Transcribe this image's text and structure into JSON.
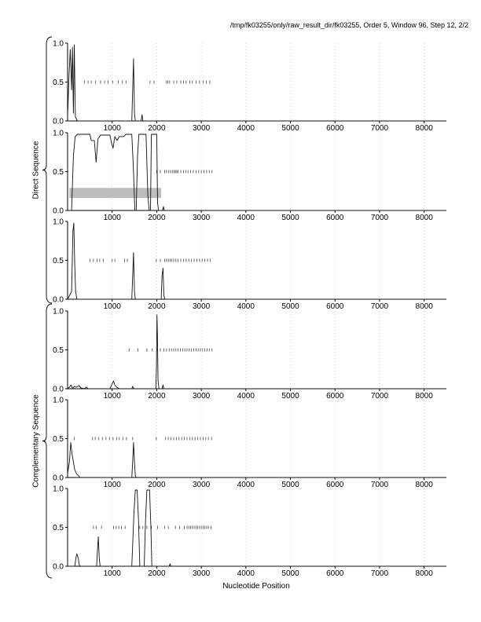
{
  "header": "/tmp/fk03255/only/raw_result_dir/fk03255, Order 5, Window 96, Step 12, 2/2",
  "x_title": "Nucleotide Position",
  "strand_labels": [
    "Direct Sequence",
    "Complementary Sequence"
  ],
  "chart_data": {
    "type": "line",
    "xlabel": "Nucleotide Position",
    "xlim": [
      0,
      8500
    ],
    "ylim": [
      0,
      1.0
    ],
    "x_ticks": [
      1000,
      2000,
      3000,
      4000,
      5000,
      6000,
      7000,
      8000
    ],
    "y_ticks": [
      "0.0",
      "0.5",
      "1.0"
    ],
    "panels": [
      {
        "strand": "Direct Sequence",
        "series": [
          [
            0,
            0.05
          ],
          [
            30,
            0.55
          ],
          [
            60,
            0.92
          ],
          [
            90,
            0.4
          ],
          [
            110,
            0.95
          ],
          [
            130,
            0.1
          ],
          [
            150,
            0.98
          ],
          [
            175,
            0.05
          ],
          [
            220,
            0.0
          ],
          [
            1440,
            0.0
          ],
          [
            1460,
            0.4
          ],
          [
            1480,
            0.8
          ],
          [
            1500,
            0.1
          ],
          [
            1520,
            0.0
          ],
          [
            1650,
            0.0
          ],
          [
            1670,
            0.08
          ],
          [
            1690,
            0.0
          ],
          [
            8500,
            0.0
          ]
        ],
        "ticks_y": 0.5,
        "ticks": [
          380,
          460,
          530,
          630,
          740,
          830,
          910,
          1010,
          1140,
          1230,
          1310,
          1850,
          1940,
          2210,
          2250,
          2290,
          2380,
          2450,
          2540,
          2600,
          2660,
          2740,
          2800,
          2880,
          2960,
          3040,
          3110,
          3190
        ]
      },
      {
        "strand": "Direct Sequence",
        "series": [
          [
            0,
            0.0
          ],
          [
            90,
            0.0
          ],
          [
            130,
            0.7
          ],
          [
            170,
            0.95
          ],
          [
            220,
            0.98
          ],
          [
            500,
            0.98
          ],
          [
            530,
            0.9
          ],
          [
            600,
            0.9
          ],
          [
            640,
            0.62
          ],
          [
            680,
            0.92
          ],
          [
            740,
            0.97
          ],
          [
            950,
            0.97
          ],
          [
            980,
            0.88
          ],
          [
            1020,
            0.8
          ],
          [
            1060,
            0.95
          ],
          [
            1110,
            0.9
          ],
          [
            1160,
            0.95
          ],
          [
            1260,
            0.95
          ],
          [
            1310,
            0.98
          ],
          [
            1440,
            0.98
          ],
          [
            1480,
            0.5
          ],
          [
            1510,
            0.0
          ],
          [
            1540,
            0.0
          ],
          [
            1570,
            0.7
          ],
          [
            1600,
            0.98
          ],
          [
            1760,
            0.98
          ],
          [
            1800,
            0.2
          ],
          [
            1830,
            0.0
          ],
          [
            1860,
            0.0
          ],
          [
            1880,
            0.98
          ],
          [
            2000,
            0.98
          ],
          [
            2020,
            0.1
          ],
          [
            2040,
            0.0
          ],
          [
            2130,
            0.0
          ],
          [
            2150,
            0.05
          ],
          [
            2170,
            0.0
          ],
          [
            8500,
            0.0
          ]
        ],
        "ticks_y": 0.5,
        "ticks": [
          2000,
          2080,
          2180,
          2220,
          2270,
          2310,
          2350,
          2390,
          2420,
          2450,
          2480,
          2540,
          2600,
          2650,
          2700,
          2760,
          2820,
          2880,
          2940,
          3000,
          3060,
          3120,
          3180,
          3240
        ],
        "band": {
          "x": [
            40,
            2100
          ],
          "y": [
            0.16,
            0.29
          ]
        }
      },
      {
        "strand": "Direct Sequence",
        "series": [
          [
            0,
            0.0
          ],
          [
            90,
            0.1
          ],
          [
            120,
            0.88
          ],
          [
            140,
            0.98
          ],
          [
            160,
            0.45
          ],
          [
            180,
            0.1
          ],
          [
            210,
            0.0
          ],
          [
            1440,
            0.0
          ],
          [
            1460,
            0.3
          ],
          [
            1480,
            0.6
          ],
          [
            1500,
            0.1
          ],
          [
            1520,
            0.0
          ],
          [
            2100,
            0.0
          ],
          [
            2120,
            0.3
          ],
          [
            2140,
            0.4
          ],
          [
            2160,
            0.05
          ],
          [
            2180,
            0.0
          ],
          [
            8500,
            0.0
          ]
        ],
        "ticks_y": 0.5,
        "ticks": [
          160,
          500,
          580,
          660,
          720,
          800,
          1000,
          1060,
          1280,
          1340,
          1990,
          2080,
          2180,
          2220,
          2260,
          2300,
          2340,
          2380,
          2430,
          2480,
          2540,
          2600,
          2660,
          2720,
          2780,
          2840,
          2900,
          2960,
          3020,
          3080,
          3140,
          3200
        ]
      },
      {
        "strand": "Complementary Sequence",
        "series": [
          [
            0,
            0.0
          ],
          [
            40,
            0.02
          ],
          [
            80,
            0.05
          ],
          [
            110,
            0.0
          ],
          [
            150,
            0.03
          ],
          [
            200,
            0.02
          ],
          [
            260,
            0.04
          ],
          [
            300,
            0.01
          ],
          [
            380,
            0.0
          ],
          [
            420,
            0.02
          ],
          [
            460,
            0.0
          ],
          [
            950,
            0.0
          ],
          [
            990,
            0.05
          ],
          [
            1030,
            0.1
          ],
          [
            1060,
            0.05
          ],
          [
            1100,
            0.02
          ],
          [
            1160,
            0.0
          ],
          [
            1440,
            0.0
          ],
          [
            1460,
            0.03
          ],
          [
            1490,
            0.0
          ],
          [
            1980,
            0.0
          ],
          [
            1995,
            0.3
          ],
          [
            2005,
            0.95
          ],
          [
            2015,
            0.7
          ],
          [
            2030,
            0.1
          ],
          [
            2050,
            0.0
          ],
          [
            2120,
            0.0
          ],
          [
            2140,
            0.05
          ],
          [
            2160,
            0.0
          ],
          [
            8500,
            0.0
          ]
        ],
        "ticks_y": 0.5,
        "ticks": [
          1380,
          1580,
          1780,
          1900,
          2000,
          2080,
          2160,
          2220,
          2280,
          2330,
          2380,
          2430,
          2480,
          2530,
          2580,
          2630,
          2680,
          2730,
          2780,
          2830,
          2880,
          2930,
          2980,
          3030,
          3080,
          3130,
          3180,
          3240
        ]
      },
      {
        "strand": "Complementary Sequence",
        "series": [
          [
            0,
            0.05
          ],
          [
            40,
            0.2
          ],
          [
            70,
            0.45
          ],
          [
            100,
            0.3
          ],
          [
            130,
            0.2
          ],
          [
            160,
            0.1
          ],
          [
            200,
            0.05
          ],
          [
            280,
            0.0
          ],
          [
            1440,
            0.0
          ],
          [
            1460,
            0.2
          ],
          [
            1480,
            0.45
          ],
          [
            1500,
            0.2
          ],
          [
            1520,
            0.02
          ],
          [
            1540,
            0.0
          ],
          [
            8500,
            0.0
          ]
        ],
        "ticks_y": 0.5,
        "ticks": [
          150,
          560,
          620,
          700,
          780,
          860,
          940,
          1020,
          1100,
          1160,
          1240,
          1320,
          1460,
          1990,
          2200,
          2260,
          2320,
          2380,
          2440,
          2500,
          2560,
          2620,
          2680,
          2740,
          2800,
          2860,
          2920,
          2980,
          3040,
          3100,
          3160,
          3230
        ]
      },
      {
        "strand": "Complementary Sequence",
        "series": [
          [
            0,
            0.0
          ],
          [
            160,
            0.0
          ],
          [
            190,
            0.12
          ],
          [
            210,
            0.16
          ],
          [
            240,
            0.1
          ],
          [
            260,
            0.02
          ],
          [
            280,
            0.0
          ],
          [
            650,
            0.0
          ],
          [
            670,
            0.2
          ],
          [
            690,
            0.38
          ],
          [
            710,
            0.1
          ],
          [
            730,
            0.0
          ],
          [
            1380,
            0.0
          ],
          [
            1440,
            0.0
          ],
          [
            1490,
            0.7
          ],
          [
            1520,
            0.98
          ],
          [
            1560,
            0.98
          ],
          [
            1590,
            0.6
          ],
          [
            1620,
            0.0
          ],
          [
            1720,
            0.0
          ],
          [
            1750,
            0.6
          ],
          [
            1780,
            0.98
          ],
          [
            1840,
            0.98
          ],
          [
            1870,
            0.5
          ],
          [
            1890,
            0.0
          ],
          [
            2280,
            0.0
          ],
          [
            2300,
            0.03
          ],
          [
            2320,
            0.0
          ],
          [
            8500,
            0.0
          ]
        ],
        "ticks_y": 0.5,
        "ticks": [
          580,
          640,
          760,
          1030,
          1090,
          1150,
          1210,
          1290,
          1620,
          1690,
          1780,
          1880,
          2020,
          2180,
          2260,
          2420,
          2510,
          2620,
          2680,
          2720,
          2760,
          2800,
          2840,
          2880,
          2920,
          2960,
          3000,
          3040,
          3080,
          3120,
          3160,
          3220
        ]
      }
    ]
  }
}
